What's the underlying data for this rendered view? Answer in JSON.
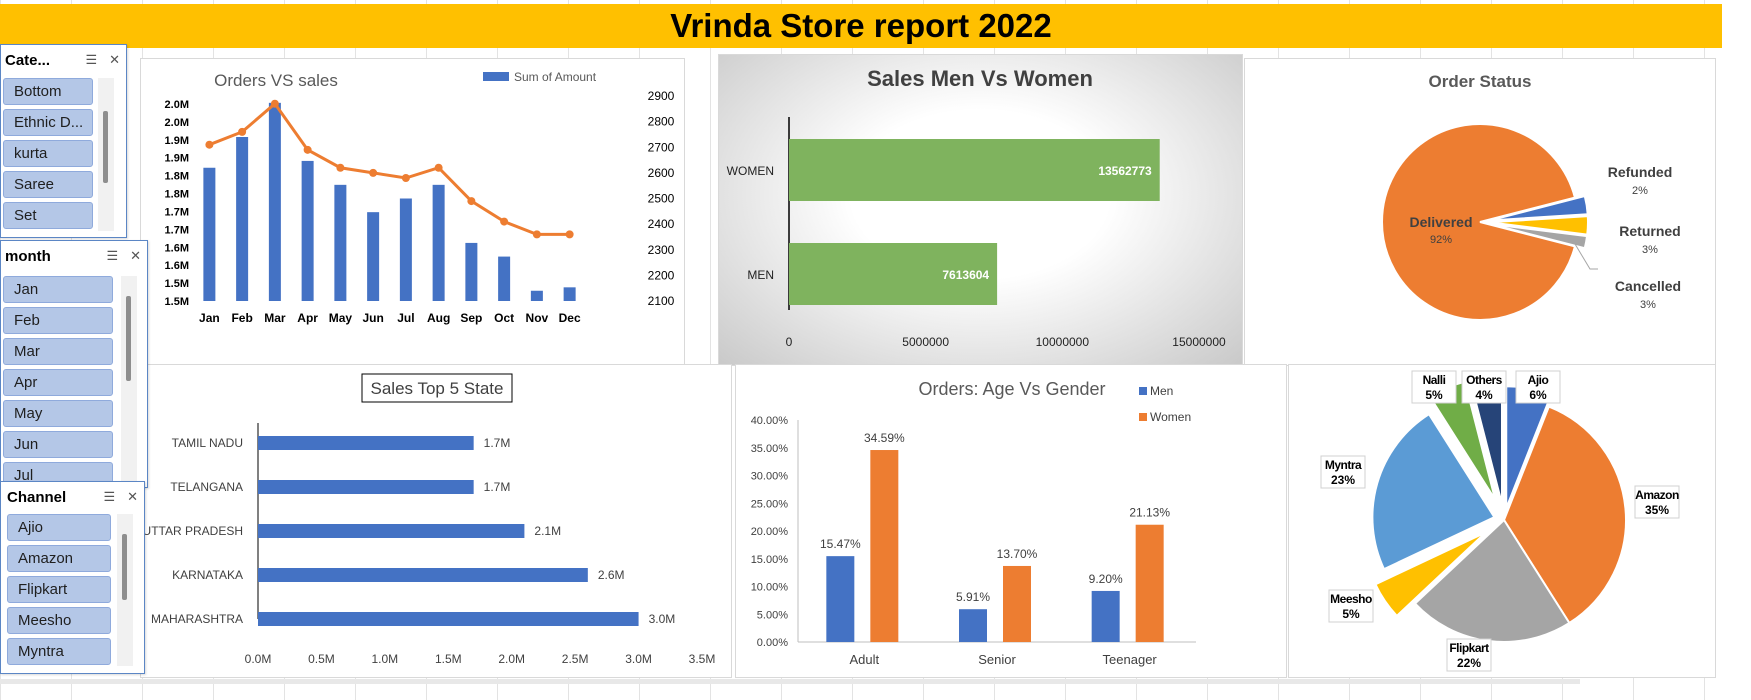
{
  "report_title": "Vrinda  Store report 2022",
  "slicers": {
    "category": {
      "title": "Cate...",
      "items": [
        "Bottom",
        "Ethnic D...",
        "kurta",
        "Saree",
        "Set"
      ]
    },
    "month": {
      "title": "month",
      "items": [
        "Jan",
        "Feb",
        "Mar",
        "Apr",
        "May",
        "Jun",
        "Jul"
      ]
    },
    "channel": {
      "title": "Channel",
      "items": [
        "Ajio",
        "Amazon",
        "Flipkart",
        "Meesho",
        "Myntra"
      ]
    }
  },
  "chart_data": [
    {
      "id": "orders_vs_sales",
      "type": "bar+line",
      "title": "Orders VS sales",
      "legend": "Sum of Amount",
      "legend_position": "top-right",
      "categories": [
        "Jan",
        "Feb",
        "Mar",
        "Apr",
        "May",
        "Jun",
        "Jul",
        "Aug",
        "Sep",
        "Oct",
        "Nov",
        "Dec"
      ],
      "series": [
        {
          "name": "Sum of Amount",
          "type": "bar",
          "axis": "left",
          "values": [
            1.84,
            1.93,
            2.03,
            1.86,
            1.79,
            1.71,
            1.75,
            1.79,
            1.62,
            1.58,
            1.48,
            1.49
          ]
        },
        {
          "type": "line",
          "axis": "right",
          "values": [
            2710,
            2760,
            2870,
            2690,
            2620,
            2600,
            2580,
            2620,
            2490,
            2410,
            2360,
            2360
          ]
        }
      ],
      "left_ticks": [
        "2.0M",
        "2.0M",
        "1.9M",
        "1.9M",
        "1.8M",
        "1.8M",
        "1.7M",
        "1.7M",
        "1.6M",
        "1.6M",
        "1.5M",
        "1.5M"
      ],
      "left_range": [
        1.45,
        2.05
      ],
      "right_ticks": [
        "2900",
        "2800",
        "2700",
        "2600",
        "2500",
        "2400",
        "2300",
        "2200",
        "2100"
      ],
      "right_range": [
        2100,
        2900
      ],
      "colors": {
        "bar": "#4472C4",
        "line": "#ED7D31"
      }
    },
    {
      "id": "sales_men_women",
      "type": "bar",
      "orientation": "horizontal",
      "title": "Sales Men Vs Women",
      "categories": [
        "WOMEN",
        "MEN"
      ],
      "values": [
        13562773,
        7613604
      ],
      "value_labels": [
        "13562773",
        "7613604"
      ],
      "x_ticks": [
        "0",
        "5000000",
        "10000000",
        "15000000"
      ],
      "xlim": [
        0,
        15000000
      ],
      "colors": {
        "bar": "#7FB35E"
      }
    },
    {
      "id": "order_status",
      "type": "pie",
      "title": "Order Status",
      "slices": [
        {
          "label": "Delivered",
          "value": 92,
          "pct": "92%",
          "color": "#ED7D31"
        },
        {
          "label": "Cancelled",
          "value": 3,
          "pct": "3%",
          "color": "#4472C4"
        },
        {
          "label": "Returned",
          "value": 3,
          "pct": "3%",
          "color": "#FFC000"
        },
        {
          "label": "Refunded",
          "value": 2,
          "pct": "2%",
          "color": "#A5A5A5"
        }
      ]
    },
    {
      "id": "top5_state",
      "type": "bar",
      "orientation": "horizontal",
      "title": "Sales Top 5 State",
      "categories": [
        "TAMIL NADU",
        "TELANGANA",
        "UTTAR PRADESH",
        "KARNATAKA",
        "MAHARASHTRA"
      ],
      "values": [
        1.7,
        1.7,
        2.1,
        2.6,
        3.0
      ],
      "value_labels": [
        "1.7M",
        "1.7M",
        "2.1M",
        "2.6M",
        "3.0M"
      ],
      "x_ticks": [
        "0.0M",
        "0.5M",
        "1.0M",
        "1.5M",
        "2.0M",
        "2.5M",
        "3.0M",
        "3.5M"
      ],
      "xlim": [
        0,
        3.5
      ],
      "colors": {
        "bar": "#4472C4"
      }
    },
    {
      "id": "age_vs_gender",
      "type": "bar",
      "title": "Orders: Age Vs Gender",
      "categories": [
        "Adult",
        "Senior",
        "Teenager"
      ],
      "series": [
        {
          "name": "Men",
          "values": [
            15.47,
            5.91,
            9.2
          ],
          "labels": [
            "15.47%",
            "5.91%",
            "9.20%"
          ],
          "color": "#4472C4"
        },
        {
          "name": "Women",
          "values": [
            34.59,
            13.7,
            21.13
          ],
          "labels": [
            "34.59%",
            "13.70%",
            "21.13%"
          ],
          "color": "#ED7D31"
        }
      ],
      "y_ticks": [
        "40.00%",
        "35.00%",
        "30.00%",
        "25.00%",
        "20.00%",
        "15.00%",
        "10.00%",
        "5.00%",
        "0.00%"
      ],
      "ylim": [
        0,
        40
      ],
      "legend_position": "top-right"
    },
    {
      "id": "channel_share",
      "type": "pie",
      "slices": [
        {
          "label": "Ajio",
          "value": 6,
          "pct": "6%",
          "color": "#4472C4"
        },
        {
          "label": "Amazon",
          "value": 35,
          "pct": "35%",
          "color": "#ED7D31"
        },
        {
          "label": "Flipkart",
          "value": 22,
          "pct": "22%",
          "color": "#A5A5A5"
        },
        {
          "label": "Meesho",
          "value": 5,
          "pct": "5%",
          "color": "#FFC000"
        },
        {
          "label": "Myntra",
          "value": 23,
          "pct": "23%",
          "color": "#5B9BD5"
        },
        {
          "label": "Nalli",
          "value": 5,
          "pct": "5%",
          "color": "#70AD47"
        },
        {
          "label": "Others",
          "value": 4,
          "pct": "4%",
          "color": "#264478"
        }
      ]
    }
  ]
}
